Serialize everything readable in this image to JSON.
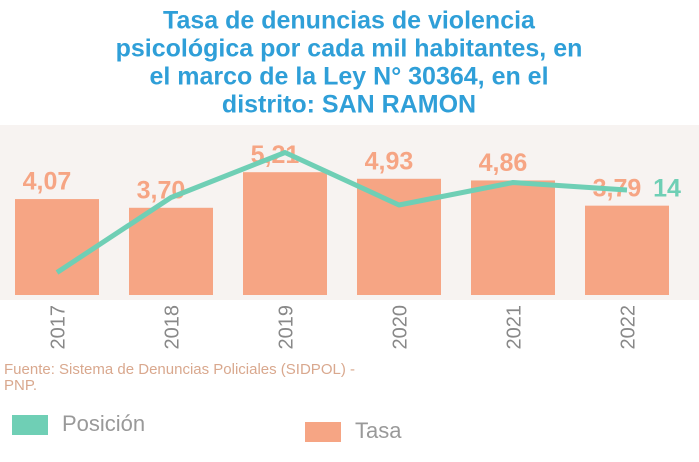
{
  "chart_data": {
    "type": "bar_line",
    "title": [
      "Tasa de denuncias de violencia",
      "psicológica por cada mil habitantes, en",
      "el marco de la Ley N° 30364, en el",
      "distrito: SAN RAMON"
    ],
    "categories": [
      "2017",
      "2018",
      "2019",
      "2020",
      "2021",
      "2022"
    ],
    "series": [
      {
        "name": "Posición",
        "type": "line",
        "axis": "y2",
        "color": "#6fcfb5",
        "values": [
          3,
          13,
          19,
          12,
          15,
          14
        ],
        "value_labels": [
          null,
          null,
          null,
          null,
          null,
          "14"
        ]
      },
      {
        "name": "Tasa",
        "type": "bar",
        "color": "#f6a584",
        "values": [
          4.07,
          3.7,
          5.21,
          4.93,
          4.86,
          3.79
        ],
        "value_labels": [
          "4,07",
          "3,70",
          "5,21",
          "4,93",
          "4,86",
          "3,79"
        ]
      }
    ],
    "ylim": [
      0,
      7
    ],
    "y2lim": [
      0,
      22
    ],
    "source": [
      "Fuente: Sistema de Denuncias Policiales (SIDPOL) -",
      "PNP."
    ]
  }
}
